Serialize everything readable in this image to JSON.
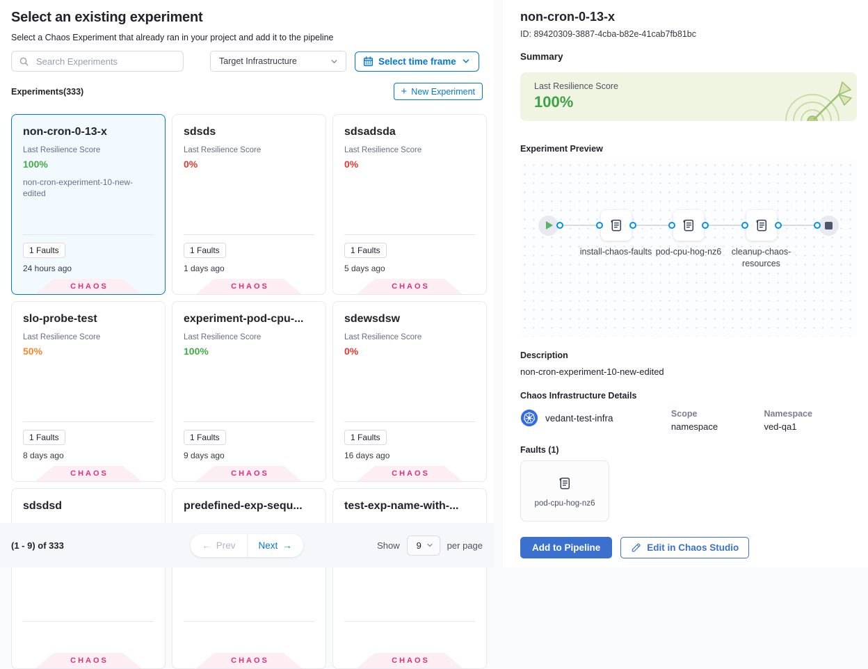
{
  "icons": {
    "plus": "+",
    "arrow_left": "←",
    "arrow_right": "→"
  },
  "colors": {
    "accent_blue": "#0278d5",
    "button_blue": "#3b70cf",
    "green": "#42ab45",
    "red": "#e6382d",
    "orange": "#f6882b",
    "magenta": "#d9317a",
    "kubernetes_blue": "#326ce5",
    "score_card_bg": "#eff5e0"
  },
  "left_panel": {
    "title": "Select an existing experiment",
    "subtitle": "Select a Chaos Experiment that already ran in your project and add it to the pipeline",
    "search": {
      "placeholder": "Search Experiments"
    },
    "infra_filter": "Target Infrastructure",
    "time_frame_button": "Select time frame",
    "experiments_count_label": "Experiments(333)",
    "new_experiment_button": "New Experiment",
    "card_score_label": "Last Resilience Score",
    "card_tag": "CHAOS",
    "cards": [
      {
        "title": "non-cron-0-13-x",
        "score": "100%",
        "score_color": "#42ab45",
        "description": "non-cron-experiment-10-new-edited",
        "faults": "1 Faults",
        "ago": "24 hours ago",
        "selected": true
      },
      {
        "title": "sdsds",
        "score": "0%",
        "score_color": "#e6382d",
        "faults": "1 Faults",
        "ago": "1 days ago"
      },
      {
        "title": "sdsadsda",
        "score": "0%",
        "score_color": "#e6382d",
        "faults": "1 Faults",
        "ago": "5 days ago"
      },
      {
        "title": "slo-probe-test",
        "score": "50%",
        "score_color": "#f6882b",
        "faults": "1 Faults",
        "ago": "8 days ago"
      },
      {
        "title": "experiment-pod-cpu-...",
        "score": "100%",
        "score_color": "#42ab45",
        "faults": "1 Faults",
        "ago": "9 days ago"
      },
      {
        "title": "sdewsdsw",
        "score": "0%",
        "score_color": "#e6382d",
        "faults": "1 Faults",
        "ago": "16 days ago"
      },
      {
        "title": "sdsdsd"
      },
      {
        "title": "predefined-exp-sequ..."
      },
      {
        "title": "test-exp-name-with-..."
      }
    ],
    "pagination": {
      "range": "(1 - 9) of 333",
      "prev": "Prev",
      "next": "Next",
      "show": "Show",
      "page_size": "9",
      "per_page": "per page"
    }
  },
  "right_panel": {
    "title": "non-cron-0-13-x",
    "id": "ID: 89420309-3887-4cba-b82e-41cab7fb81bc",
    "summary_label": "Summary",
    "score_card": {
      "label": "Last Resilience Score",
      "value": "100%"
    },
    "preview_label": "Experiment Preview",
    "pipeline": {
      "steps": [
        "install-chaos-faults",
        "pod-cpu-hog-nz6",
        "cleanup-chaos-resources"
      ]
    },
    "description_label": "Description",
    "description": "non-cron-experiment-10-new-edited",
    "infra_label": "Chaos Infrastructure Details",
    "infra": {
      "name": "vedant-test-infra",
      "scope_label": "Scope",
      "scope_value": "namespace",
      "namespace_label": "Namespace",
      "namespace_value": "ved-qa1"
    },
    "faults_label": "Faults (1)",
    "fault_name": "pod-cpu-hog-nz6",
    "add_button": "Add to Pipeline",
    "edit_button": "Edit in Chaos Studio"
  }
}
